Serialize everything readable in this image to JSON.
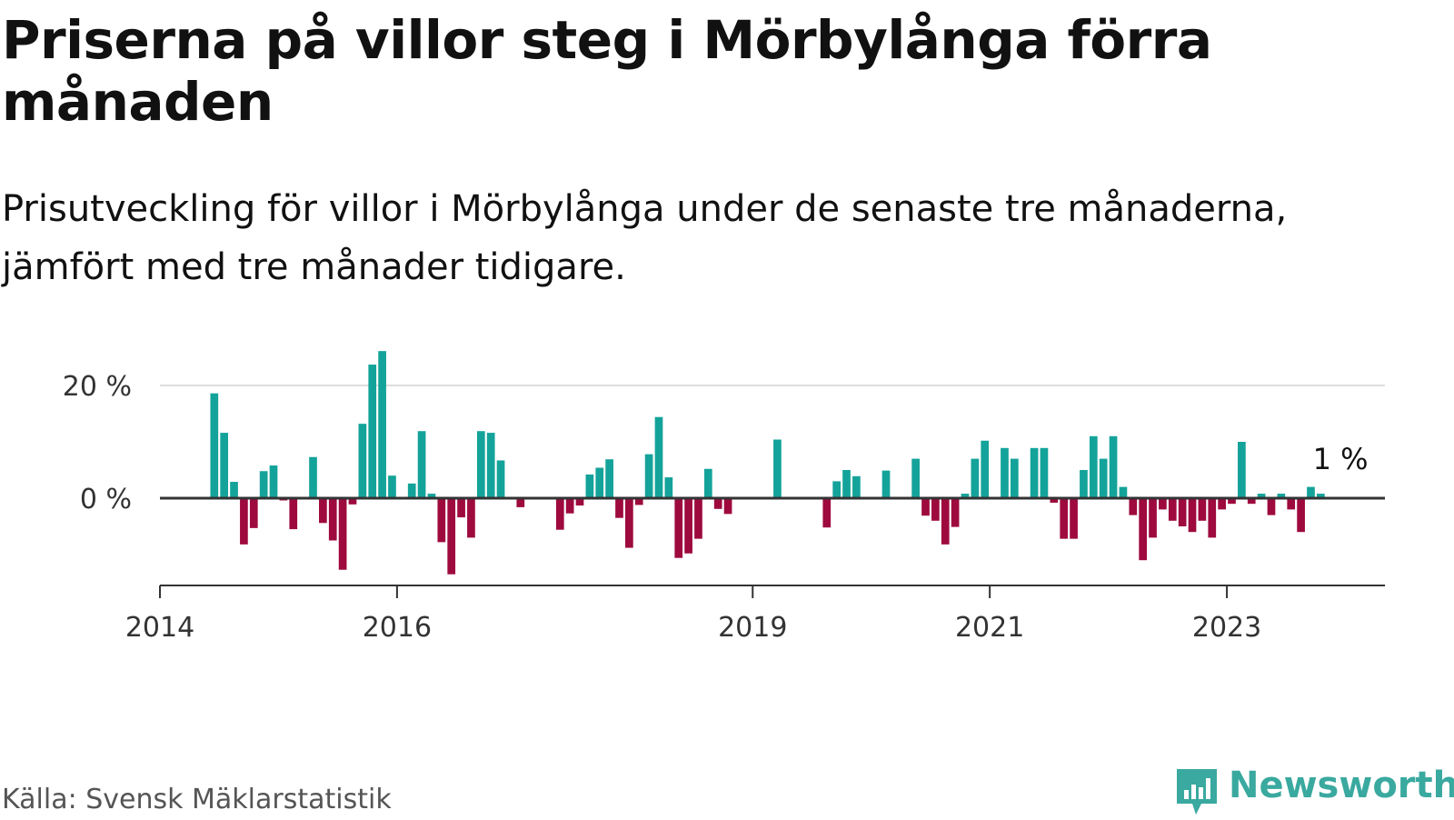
{
  "title": "Priserna på villor steg i Mörbylånga förra månaden",
  "subtitle": "Prisutveckling för villor i Mörbylånga under de senaste tre månaderna, jämfört med tre månader tidigare.",
  "source": "Källa: Svensk Mäklarstatistik",
  "brand": {
    "name": "Newsworthy",
    "icon": "newsworthy-logo-icon"
  },
  "colors": {
    "positive": "#14a39a",
    "negative": "#9e0a3e",
    "axis": "#333333",
    "grid": "#dddddd"
  },
  "chart_data": {
    "type": "bar",
    "title": "Priserna på villor steg i Mörbylånga förra månaden",
    "xlabel": "",
    "ylabel": "",
    "unit": "%",
    "x_range": [
      "2014-01",
      "2024-05"
    ],
    "ylim": [
      -15,
      30
    ],
    "y_ticks": [
      {
        "value": 0,
        "label": "0 %"
      },
      {
        "value": 20,
        "label": "20 %"
      }
    ],
    "x_ticks": [
      {
        "year": 2014,
        "label": "2014"
      },
      {
        "year": 2016,
        "label": "2016"
      },
      {
        "year": 2019,
        "label": "2019"
      },
      {
        "year": 2021,
        "label": "2021"
      },
      {
        "year": 2023,
        "label": "2023"
      }
    ],
    "annotation": {
      "text": "1 %",
      "month": "2023-12",
      "value": 1
    },
    "series": [
      {
        "name": "Prisutveckling (%)",
        "values": [
          [
            "2014-06",
            18.6
          ],
          [
            "2014-07",
            11.6
          ],
          [
            "2014-08",
            2.9
          ],
          [
            "2014-09",
            -8.2
          ],
          [
            "2014-10",
            -5.3
          ],
          [
            "2014-11",
            4.8
          ],
          [
            "2014-12",
            5.8
          ],
          [
            "2015-01",
            -0.4
          ],
          [
            "2015-02",
            -5.5
          ],
          [
            "2015-04",
            7.3
          ],
          [
            "2015-05",
            -4.4
          ],
          [
            "2015-06",
            -7.5
          ],
          [
            "2015-07",
            -12.7
          ],
          [
            "2015-08",
            -1.1
          ],
          [
            "2015-09",
            13.2
          ],
          [
            "2015-10",
            23.7
          ],
          [
            "2015-11",
            26.1
          ],
          [
            "2015-12",
            4.0
          ],
          [
            "2016-02",
            2.6
          ],
          [
            "2016-03",
            11.9
          ],
          [
            "2016-04",
            0.8
          ],
          [
            "2016-05",
            -7.8
          ],
          [
            "2016-06",
            -13.5
          ],
          [
            "2016-07",
            -3.4
          ],
          [
            "2016-08",
            -7.0
          ],
          [
            "2016-09",
            11.9
          ],
          [
            "2016-10",
            11.6
          ],
          [
            "2016-11",
            6.7
          ],
          [
            "2017-01",
            -1.6
          ],
          [
            "2017-05",
            -5.6
          ],
          [
            "2017-06",
            -2.7
          ],
          [
            "2017-07",
            -1.3
          ],
          [
            "2017-08",
            4.2
          ],
          [
            "2017-09",
            5.4
          ],
          [
            "2017-10",
            6.9
          ],
          [
            "2017-11",
            -3.5
          ],
          [
            "2017-12",
            -8.8
          ],
          [
            "2018-01",
            -1.2
          ],
          [
            "2018-02",
            7.8
          ],
          [
            "2018-03",
            14.4
          ],
          [
            "2018-04",
            3.7
          ],
          [
            "2018-05",
            -10.6
          ],
          [
            "2018-06",
            -9.8
          ],
          [
            "2018-07",
            -7.2
          ],
          [
            "2018-08",
            5.2
          ],
          [
            "2018-09",
            -1.9
          ],
          [
            "2018-10",
            -2.8
          ],
          [
            "2019-03",
            10.4
          ],
          [
            "2019-08",
            -5.2
          ],
          [
            "2019-09",
            3.0
          ],
          [
            "2019-10",
            5.0
          ],
          [
            "2019-11",
            3.9
          ],
          [
            "2020-02",
            4.9
          ],
          [
            "2020-05",
            7.0
          ],
          [
            "2020-06",
            -3.1
          ],
          [
            "2020-07",
            -4.0
          ],
          [
            "2020-08",
            -8.2
          ],
          [
            "2020-09",
            -5.1
          ],
          [
            "2020-10",
            0.8
          ],
          [
            "2020-11",
            7.0
          ],
          [
            "2020-12",
            10.2
          ],
          [
            "2021-02",
            8.9
          ],
          [
            "2021-03",
            7.0
          ],
          [
            "2021-05",
            8.9
          ],
          [
            "2021-06",
            8.9
          ],
          [
            "2021-07",
            -0.8
          ],
          [
            "2021-08",
            -7.2
          ],
          [
            "2021-09",
            -7.2
          ],
          [
            "2021-10",
            5.0
          ],
          [
            "2021-11",
            11.0
          ],
          [
            "2021-12",
            7.0
          ],
          [
            "2022-01",
            11.0
          ],
          [
            "2022-02",
            2.0
          ],
          [
            "2022-03",
            -3.0
          ],
          [
            "2022-04",
            -11.0
          ],
          [
            "2022-05",
            -7.0
          ],
          [
            "2022-06",
            -2.0
          ],
          [
            "2022-07",
            -4.0
          ],
          [
            "2022-08",
            -5.0
          ],
          [
            "2022-09",
            -6.0
          ],
          [
            "2022-10",
            -4.0
          ],
          [
            "2022-11",
            -7.0
          ],
          [
            "2022-12",
            -2.0
          ],
          [
            "2023-01",
            -1.0
          ],
          [
            "2023-02",
            10.0
          ],
          [
            "2023-03",
            -1.0
          ],
          [
            "2023-04",
            0.8
          ],
          [
            "2023-05",
            -3.0
          ],
          [
            "2023-06",
            0.8
          ],
          [
            "2023-07",
            -2.0
          ],
          [
            "2023-08",
            -6.0
          ],
          [
            "2023-09",
            2.0
          ],
          [
            "2023-10",
            0.8
          ]
        ]
      }
    ]
  }
}
